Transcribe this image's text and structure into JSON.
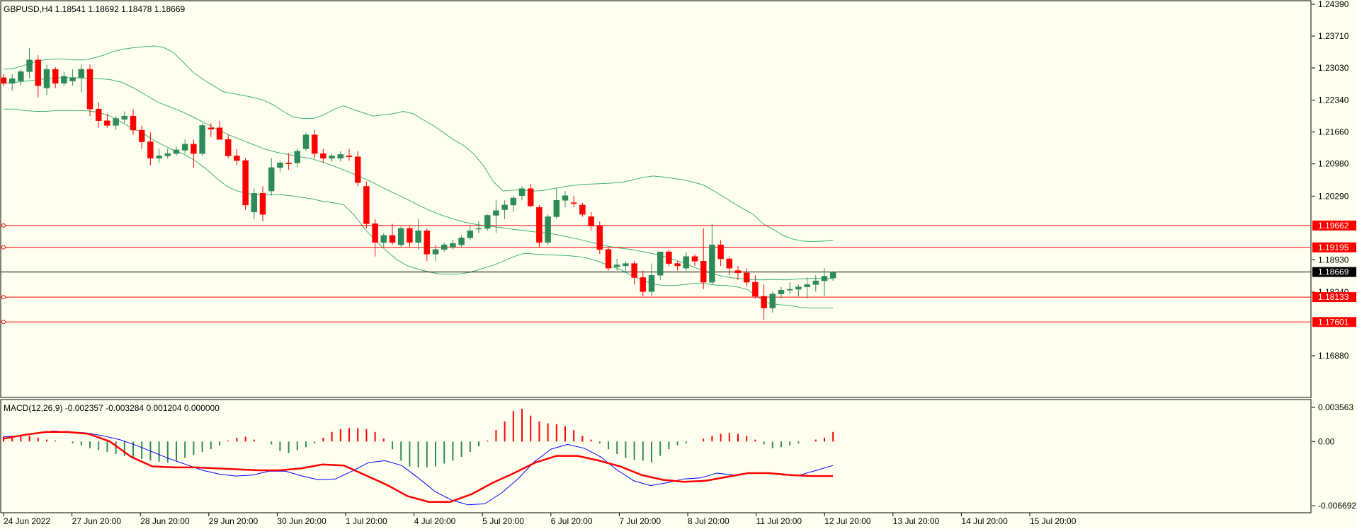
{
  "header": {
    "symbol_line": "GBPUSD,H4  1.18541 1.18692 1.18478 1.18669",
    "macd_line": "MACD(12,26,9) -0.002357 -0.003284 0.001204 0.000000"
  },
  "colors": {
    "background": "#FFFFF0",
    "bull_candle": "#2E8B57",
    "bear_candle": "#FF0000",
    "bollinger": "#3CB371",
    "level_line": "#FF0000",
    "price_line": "#000000",
    "macd_line": "#0000FF",
    "signal_line": "#FF0000"
  },
  "chart_data": [
    {
      "type": "candlestick",
      "title": "GBPUSD,H4",
      "ylim": [
        1.162,
        1.2439
      ],
      "y_ticks": [
        "1.24390",
        "1.23710",
        "1.23030",
        "1.22340",
        "1.21660",
        "1.20980",
        "1.20290",
        "1.18930",
        "1.18240",
        "1.16880"
      ],
      "x_tick_labels": [
        "24 Jun 2022",
        "27 Jun 20:00",
        "28 Jun 20:00",
        "29 Jun 20:00",
        "30 Jun 20:00",
        "1 Jul 20:00",
        "4 Jul 20:00",
        "5 Jul 20:00",
        "6 Jul 20:00",
        "7 Jul 20:00",
        "8 Jul 20:00",
        "11 Jul 20:00",
        "12 Jul 20:00",
        "13 Jul 20:00",
        "14 Jul 20:00",
        "15 Jul 20:00"
      ],
      "current_price": {
        "value": 1.18669,
        "label": "1.18669"
      },
      "levels": [
        {
          "value": 1.19662,
          "label": "1.19662"
        },
        {
          "value": 1.19195,
          "label": "1.19195"
        },
        {
          "value": 1.18133,
          "label": "1.18133"
        },
        {
          "value": 1.17601,
          "label": "1.17601"
        }
      ],
      "candles": [
        [
          1.2282,
          1.229,
          1.2265,
          1.227
        ],
        [
          1.227,
          1.229,
          1.2255,
          1.228
        ],
        [
          1.2275,
          1.23,
          1.2265,
          1.2295
        ],
        [
          1.2295,
          1.2345,
          1.228,
          1.232
        ],
        [
          1.232,
          1.233,
          1.224,
          1.2265
        ],
        [
          1.226,
          1.231,
          1.2245,
          1.23
        ],
        [
          1.23,
          1.2305,
          1.226,
          1.227
        ],
        [
          1.227,
          1.2295,
          1.2265,
          1.2285
        ],
        [
          1.2275,
          1.23,
          1.2265,
          1.2282
        ],
        [
          1.2282,
          1.231,
          1.225,
          1.23
        ],
        [
          1.23,
          1.231,
          1.22,
          1.2215
        ],
        [
          1.2215,
          1.223,
          1.2175,
          1.219
        ],
        [
          1.219,
          1.2205,
          1.2175,
          1.218
        ],
        [
          1.218,
          1.22,
          1.217,
          1.2195
        ],
        [
          1.2193,
          1.221,
          1.2185,
          1.22
        ],
        [
          1.22,
          1.2215,
          1.216,
          1.217
        ],
        [
          1.217,
          1.218,
          1.213,
          1.2145
        ],
        [
          1.2145,
          1.2165,
          1.2095,
          1.211
        ],
        [
          1.211,
          1.213,
          1.21,
          1.2115
        ],
        [
          1.2115,
          1.213,
          1.211,
          1.212
        ],
        [
          1.212,
          1.2135,
          1.2115,
          1.2128
        ],
        [
          1.2127,
          1.215,
          1.212,
          1.214
        ],
        [
          1.214,
          1.215,
          1.209,
          1.212
        ],
        [
          1.212,
          1.2185,
          1.2115,
          1.218
        ],
        [
          1.2175,
          1.2185,
          1.2155,
          1.2172
        ],
        [
          1.2175,
          1.219,
          1.215,
          1.215
        ],
        [
          1.215,
          1.216,
          1.211,
          1.2115
        ],
        [
          1.2115,
          1.213,
          1.2095,
          1.2105
        ],
        [
          1.2105,
          1.211,
          1.2,
          1.201
        ],
        [
          1.1995,
          1.2045,
          1.198,
          1.2035
        ],
        [
          1.2035,
          1.205,
          1.1975,
          1.199
        ],
        [
          1.204,
          1.211,
          1.203,
          1.209
        ],
        [
          1.209,
          1.2105,
          1.208,
          1.21
        ],
        [
          1.21,
          1.212,
          1.2085,
          1.2098
        ],
        [
          1.21,
          1.213,
          1.209,
          1.2125
        ],
        [
          1.213,
          1.2165,
          1.2125,
          1.216
        ],
        [
          1.216,
          1.217,
          1.211,
          1.212
        ],
        [
          1.212,
          1.213,
          1.21,
          1.211
        ],
        [
          1.211,
          1.212,
          1.2102,
          1.2115
        ],
        [
          1.211,
          1.2125,
          1.2103,
          1.2118
        ],
        [
          1.2115,
          1.213,
          1.2105,
          1.2113
        ],
        [
          1.2113,
          1.2125,
          1.205,
          1.2058
        ],
        [
          1.205,
          1.206,
          1.196,
          1.197
        ],
        [
          1.197,
          1.198,
          1.19,
          1.193
        ],
        [
          1.193,
          1.195,
          1.192,
          1.1945
        ],
        [
          1.1945,
          1.197,
          1.1925,
          1.193
        ],
        [
          1.1925,
          1.1965,
          1.192,
          1.196
        ],
        [
          1.196,
          1.1965,
          1.192,
          1.193
        ],
        [
          1.193,
          1.198,
          1.1915,
          1.1955
        ],
        [
          1.1955,
          1.196,
          1.189,
          1.1905
        ],
        [
          1.1905,
          1.1925,
          1.189,
          1.1915
        ],
        [
          1.1915,
          1.193,
          1.191,
          1.1925
        ],
        [
          1.192,
          1.1935,
          1.1915,
          1.1928
        ],
        [
          1.1925,
          1.1945,
          1.192,
          1.194
        ],
        [
          1.194,
          1.1965,
          1.1935,
          1.1955
        ],
        [
          1.196,
          1.1975,
          1.195,
          1.196
        ],
        [
          1.196,
          1.199,
          1.1955,
          1.1988
        ],
        [
          1.1988,
          1.202,
          1.195,
          1.1998
        ],
        [
          1.2,
          1.202,
          1.198,
          1.201
        ],
        [
          1.201,
          1.203,
          1.1995,
          1.2025
        ],
        [
          1.203,
          1.205,
          1.202,
          1.2045
        ],
        [
          1.2045,
          1.2055,
          1.2005,
          1.2008
        ],
        [
          1.2005,
          1.201,
          1.192,
          1.193
        ],
        [
          1.193,
          1.199,
          1.1925,
          1.1985
        ],
        [
          1.1985,
          1.2045,
          1.198,
          1.202
        ],
        [
          1.202,
          1.204,
          1.2005,
          1.203
        ],
        [
          1.2015,
          1.203,
          1.2005,
          1.2013
        ],
        [
          1.201,
          1.2015,
          1.1985,
          1.199
        ],
        [
          1.1985,
          1.1995,
          1.1955,
          1.1965
        ],
        [
          1.1965,
          1.1975,
          1.1905,
          1.1915
        ],
        [
          1.1915,
          1.192,
          1.187,
          1.1875
        ],
        [
          1.1878,
          1.1895,
          1.187,
          1.1882
        ],
        [
          1.188,
          1.189,
          1.1865,
          1.1885
        ],
        [
          1.1885,
          1.189,
          1.184,
          1.1855
        ],
        [
          1.1855,
          1.187,
          1.1815,
          1.1825
        ],
        [
          1.1825,
          1.1885,
          1.1815,
          1.186
        ],
        [
          1.186,
          1.191,
          1.185,
          1.191
        ],
        [
          1.191,
          1.1915,
          1.188,
          1.1885
        ],
        [
          1.1885,
          1.189,
          1.187,
          1.188
        ],
        [
          1.1875,
          1.191,
          1.187,
          1.19
        ],
        [
          1.19,
          1.1905,
          1.188,
          1.189
        ],
        [
          1.189,
          1.196,
          1.183,
          1.1845
        ],
        [
          1.1845,
          1.197,
          1.184,
          1.1925
        ],
        [
          1.1925,
          1.1935,
          1.188,
          1.1895
        ],
        [
          1.1895,
          1.19,
          1.186,
          1.1875
        ],
        [
          1.187,
          1.188,
          1.185,
          1.1865
        ],
        [
          1.1865,
          1.1875,
          1.1835,
          1.1845
        ],
        [
          1.1845,
          1.186,
          1.181,
          1.1815
        ],
        [
          1.1815,
          1.184,
          1.1765,
          1.179
        ],
        [
          1.179,
          1.1825,
          1.178,
          1.182
        ],
        [
          1.182,
          1.1835,
          1.181,
          1.1828
        ],
        [
          1.1828,
          1.1845,
          1.182,
          1.183
        ],
        [
          1.183,
          1.184,
          1.1815,
          1.1835
        ],
        [
          1.1835,
          1.1855,
          1.181,
          1.184
        ],
        [
          1.184,
          1.186,
          1.1825,
          1.1848
        ],
        [
          1.1848,
          1.1875,
          1.1815,
          1.1858
        ],
        [
          1.1854,
          1.1869,
          1.1848,
          1.1867
        ]
      ],
      "bollinger_upper": [
        1.23,
        1.2302,
        1.2308,
        1.2315,
        1.232,
        1.2322,
        1.2322,
        1.232,
        1.232,
        1.2324,
        1.233,
        1.2338,
        1.2343,
        1.2346,
        1.2348,
        1.235,
        1.2347,
        1.2336,
        1.2315,
        1.2293,
        1.2278,
        1.2265,
        1.2252,
        1.2248,
        1.2244,
        1.224,
        1.2234,
        1.2224,
        1.221,
        1.2198,
        1.2195,
        1.2195,
        1.2202,
        1.2214,
        1.2222,
        1.2214,
        1.2207,
        1.22,
        1.2203,
        1.2205,
        1.221,
        1.2205,
        1.2192,
        1.218,
        1.2165,
        1.215,
        1.2138,
        1.212,
        1.2095,
        1.206,
        1.204,
        1.2042,
        1.2042,
        1.204,
        1.2041,
        1.2045,
        1.2049,
        1.2052,
        1.2054,
        1.2055,
        1.2056,
        1.2057,
        1.2059,
        1.2064,
        1.2069,
        1.2072,
        1.207,
        1.2067,
        1.2064,
        1.2059,
        1.2053,
        1.2041,
        1.2028,
        1.2015,
        1.2002,
        1.199,
        1.197,
        1.1958,
        1.1945,
        1.1937,
        1.1933,
        1.1932,
        1.1933,
        1.1934
      ],
      "bollinger_middle": [
        1.227,
        1.2272,
        1.2275,
        1.2278,
        1.2281,
        1.2282,
        1.2282,
        1.2281,
        1.228,
        1.2278,
        1.2272,
        1.226,
        1.2245,
        1.223,
        1.222,
        1.221,
        1.2198,
        1.2185,
        1.2172,
        1.216,
        1.215,
        1.214,
        1.213,
        1.2123,
        1.2118,
        1.2113,
        1.2109,
        1.2101,
        1.2092,
        1.2082,
        1.2072,
        1.206,
        1.2047,
        1.2035,
        1.2023,
        1.201,
        1.1998,
        1.1988,
        1.198,
        1.1973,
        1.1968,
        1.1965,
        1.1962,
        1.1958,
        1.1955,
        1.1952,
        1.195,
        1.1945,
        1.194,
        1.1934,
        1.1928,
        1.1922,
        1.1918,
        1.1915,
        1.191,
        1.1905,
        1.1898,
        1.189,
        1.188,
        1.187,
        1.1862,
        1.1856,
        1.1853,
        1.1851,
        1.185,
        1.1851,
        1.185,
        1.1852,
        1.1853,
        1.1853,
        1.1853
      ],
      "bollinger_lower": [
        1.2215,
        1.2215,
        1.2212,
        1.221,
        1.221,
        1.2212,
        1.2212,
        1.2212,
        1.2211,
        1.2208,
        1.22,
        1.2188,
        1.2175,
        1.2165,
        1.215,
        1.2138,
        1.2127,
        1.2118,
        1.2105,
        1.2088,
        1.2068,
        1.205,
        1.204,
        1.2034,
        1.2032,
        1.2032,
        1.2032,
        1.203,
        1.2027,
        1.2023,
        1.2018,
        1.2015,
        1.201,
        1.1988,
        1.1958,
        1.1934,
        1.1912,
        1.1893,
        1.188,
        1.1873,
        1.1867,
        1.1863,
        1.1862,
        1.1863,
        1.1867,
        1.1874,
        1.1881,
        1.189,
        1.19,
        1.1907,
        1.1905,
        1.1904,
        1.1903,
        1.1902,
        1.19,
        1.1896,
        1.1889,
        1.188,
        1.1872,
        1.186,
        1.185,
        1.1842,
        1.1838,
        1.1838,
        1.184,
        1.1843,
        1.1842,
        1.1839,
        1.1838,
        1.1835,
        1.1829,
        1.1812,
        1.18,
        1.1797,
        1.1795,
        1.1791,
        1.179,
        1.179,
        1.179
      ]
    },
    {
      "type": "macd",
      "title": "MACD(12,26,9)",
      "ylim": [
        -0.006692,
        0.003563
      ],
      "y_ticks": [
        "0.003563",
        "0.00",
        "-0.006692"
      ],
      "histogram": [
        0.0005,
        0.0005,
        0.0006,
        0.0006,
        0.0004,
        0.0002,
        0.0001,
        0.0,
        -0.0002,
        -0.0004,
        -0.0007,
        -0.0009,
        -0.0011,
        -0.0013,
        -0.0015,
        -0.0016,
        -0.0018,
        -0.002,
        -0.0021,
        -0.0022,
        -0.002,
        -0.0017,
        -0.0014,
        -0.0011,
        -0.0008,
        -0.0004,
        0.0001,
        0.0004,
        0.0005,
        0.0002,
        0.0,
        -0.0003,
        -0.001,
        -0.0012,
        -0.0009,
        -0.0006,
        -0.0002,
        0.0004,
        0.001,
        0.0013,
        0.0014,
        0.0014,
        0.0013,
        0.001,
        0.0003,
        -0.0008,
        -0.002,
        -0.0026,
        -0.0027,
        -0.0027,
        -0.0026,
        -0.0023,
        -0.002,
        -0.0016,
        -0.0011,
        -0.0005,
        0.0001,
        0.0012,
        0.0021,
        0.0032,
        0.0034,
        0.0027,
        0.0021,
        0.0019,
        0.0018,
        0.0016,
        0.0012,
        0.0006,
        0.0002,
        -0.0002,
        -0.0008,
        -0.0013,
        -0.0017,
        -0.0019,
        -0.002,
        -0.0022,
        -0.0015,
        -0.0008,
        -0.0004,
        -0.0002,
        0.0,
        0.0003,
        0.0006,
        0.0008,
        0.0009,
        0.0008,
        0.0006,
        0.0002,
        -0.0003,
        -0.0007,
        -0.0006,
        -0.0004,
        -0.0002,
        0.0,
        0.0002,
        0.0004,
        0.001
      ],
      "macd": [
        0.0005,
        0.0006,
        0.0009,
        0.0011,
        0.001,
        0.0009,
        0.0006,
        0.0002,
        -0.0004,
        -0.0011,
        -0.0018,
        -0.0024,
        -0.003,
        -0.0034,
        -0.0036,
        -0.0035,
        -0.0031,
        -0.0031,
        -0.0036,
        -0.004,
        -0.0039,
        -0.0031,
        -0.0022,
        -0.002,
        -0.0025,
        -0.0038,
        -0.0052,
        -0.0061,
        -0.0066,
        -0.0065,
        -0.0054,
        -0.0039,
        -0.0021,
        -0.0008,
        -0.0003,
        -0.0007,
        -0.0016,
        -0.003,
        -0.0041,
        -0.0046,
        -0.0043,
        -0.0039,
        -0.0038,
        -0.0033,
        -0.0035,
        -0.0033,
        -0.0033,
        -0.0035,
        -0.0035,
        -0.003,
        -0.0025
      ],
      "signal": [
        0.0003,
        0.0007,
        0.001,
        0.001,
        0.0008,
        0.0,
        -0.0016,
        -0.0026,
        -0.0027,
        -0.0027,
        -0.0028,
        -0.0029,
        -0.003,
        -0.003,
        -0.0028,
        -0.0024,
        -0.0025,
        -0.0035,
        -0.0045,
        -0.0057,
        -0.0063,
        -0.0063,
        -0.0055,
        -0.0043,
        -0.0033,
        -0.0022,
        -0.0015,
        -0.0015,
        -0.002,
        -0.0026,
        -0.0035,
        -0.004,
        -0.0042,
        -0.0041,
        -0.0037,
        -0.0033,
        -0.0033,
        -0.0035,
        -0.0036,
        -0.0036
      ]
    }
  ]
}
